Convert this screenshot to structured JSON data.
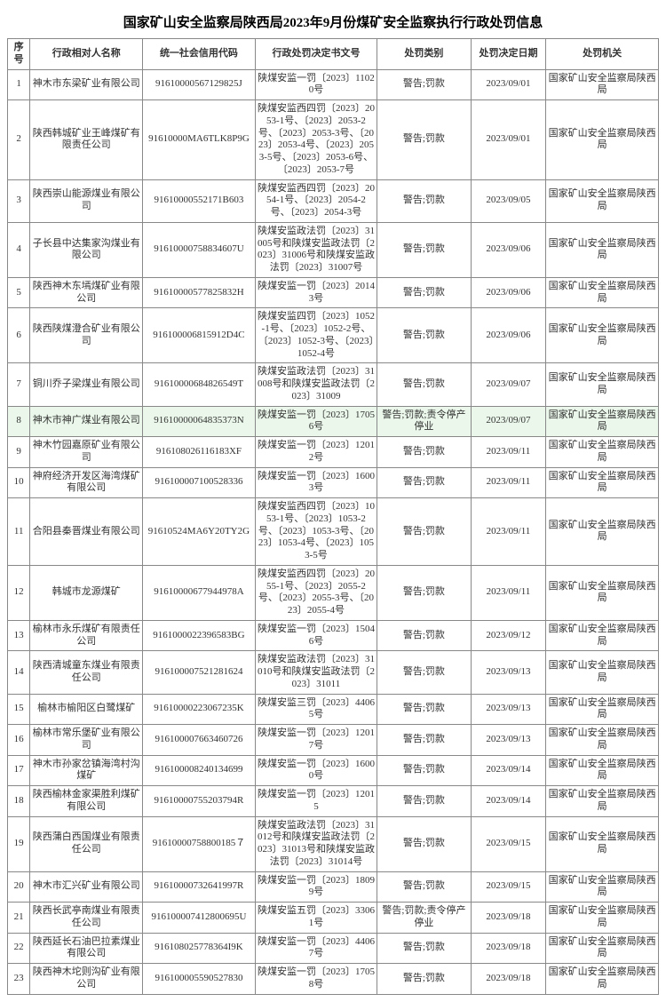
{
  "title": "国家矿山安全监察局陕西局2023年9月份煤矿安全监察执行行政处罚信息",
  "headers": {
    "idx": "序号",
    "name": "行政相对人名称",
    "code": "统一社会信用代码",
    "doc": "行政处罚决定书文号",
    "type": "处罚类别",
    "date": "处罚决定日期",
    "org": "处罚机关"
  },
  "org_name": "国家矿山安全监察局陕西局",
  "rows": [
    {
      "idx": 1,
      "name": "神木市东梁矿业有限公司",
      "code": "91610000567129825J",
      "doc": "陕煤安监一罚〔2023〕11020号",
      "type": "警告;罚款",
      "date": "2023/09/01"
    },
    {
      "idx": 2,
      "name": "陕西韩城矿业王峰煤矿有限责任公司",
      "code": "91610000MA6TLK8P9G",
      "doc": "陕煤安监西四罚〔2023〕2053-1号、〔2023〕2053-2号、〔2023〕2053-3号、〔2023〕2053-4号、〔2023〕2053-5号、〔2023〕2053-6号、〔2023〕2053-7号",
      "type": "警告;罚款",
      "date": "2023/09/01"
    },
    {
      "idx": 3,
      "name": "陕西崇山能源煤业有限公司",
      "code": "91610000552171B603",
      "doc": "陕煤安监西四罚〔2023〕2054-1号、〔2023〕2054-2号、〔2023〕2054-3号",
      "type": "警告;罚款",
      "date": "2023/09/05"
    },
    {
      "idx": 4,
      "name": "子长县中达集家沟煤业有限公司",
      "code": "91610000758834607U",
      "doc": "陕煤安监政法罚〔2023〕31005号和陕煤安监政法罚〔2023〕31006号和陕煤安监政法罚〔2023〕31007号",
      "type": "警告;罚款",
      "date": "2023/09/06"
    },
    {
      "idx": 5,
      "name": "陕西神木东墕煤矿业有限公司",
      "code": "91610000577825832H",
      "doc": "陕煤安监一罚〔2023〕20143号",
      "type": "警告;罚款",
      "date": "2023/09/06"
    },
    {
      "idx": 6,
      "name": "陕西陕煤澄合矿业有限公司",
      "code": "916100006815912D4C",
      "doc": "陕煤安监四罚〔2023〕1052-1号、〔2023〕1052-2号、〔2023〕1052-3号、〔2023〕1052-4号",
      "type": "警告;罚款",
      "date": "2023/09/06"
    },
    {
      "idx": 7,
      "name": "铜川乔子梁煤业有限公司",
      "code": "91610000684826549T",
      "doc": "陕煤安监政法罚〔2023〕31008号和陕煤安监政法罚〔2023〕31009",
      "type": "警告;罚款",
      "date": "2023/09/07"
    },
    {
      "idx": 8,
      "name": "神木市神广煤业有限公司",
      "code": "91610000064835373N",
      "doc": "陕煤安监一罚〔2023〕17056号",
      "type": "警告;罚款;责令停产停业",
      "date": "2023/09/07",
      "hl": true
    },
    {
      "idx": 9,
      "name": "神木竹园嘉原矿业有限公司",
      "code": "916108026116183XF",
      "doc": "陕煤安监一罚〔2023〕12012号",
      "type": "警告;罚款",
      "date": "2023/09/11"
    },
    {
      "idx": 10,
      "name": "神府经济开发区海湾煤矿有限公司",
      "code": "916100007100528336",
      "doc": "陕煤安监一罚〔2023〕16003号",
      "type": "警告;罚款",
      "date": "2023/09/11"
    },
    {
      "idx": 11,
      "name": "合阳县秦晋煤业有限公司",
      "code": "91610524MA6Y20TY2G",
      "doc": "陕煤安监西四罚〔2023〕1053-1号、〔2023〕1053-2号、〔2023〕1053-3号、〔2023〕1053-4号、〔2023〕1053-5号",
      "type": "警告;罚款",
      "date": "2023/09/11"
    },
    {
      "idx": 12,
      "name": "韩城市龙源煤矿",
      "code": "91610000677944978A",
      "doc": "陕煤安监西四罚〔2023〕2055-1号、〔2023〕2055-2号、〔2023〕2055-3号、〔2023〕2055-4号",
      "type": "警告;罚款",
      "date": "2023/09/11"
    },
    {
      "idx": 13,
      "name": "榆林市永乐煤矿有限责任公司",
      "code": "9161000022396583BG",
      "doc": "陕煤安监一罚〔2023〕15046号",
      "type": "警告;罚款",
      "date": "2023/09/12"
    },
    {
      "idx": 14,
      "name": "陕西清城童东煤业有限责任公司",
      "code": "916100007521281624",
      "doc": "陕煤安监政法罚〔2023〕31010号和陕煤安监政法罚〔2023〕31011",
      "type": "警告;罚款",
      "date": "2023/09/13"
    },
    {
      "idx": 15,
      "name": "榆林市榆阳区白鹭煤矿",
      "code": "91610000223067235K",
      "doc": "陕煤安监三罚〔2023〕44065号",
      "type": "警告;罚款",
      "date": "2023/09/13"
    },
    {
      "idx": 16,
      "name": "榆林市常乐堡矿业有限公司",
      "code": "916100007663460726",
      "doc": "陕煤安监一罚〔2023〕12017号",
      "type": "警告;罚款",
      "date": "2023/09/13"
    },
    {
      "idx": 17,
      "name": "神木市孙家岔镇海湾村沟煤矿",
      "code": "916100008240134699",
      "doc": "陕煤安监一罚〔2023〕16000号",
      "type": "警告;罚款",
      "date": "2023/09/14"
    },
    {
      "idx": 18,
      "name": "陕西榆林金家渠胜利煤矿有限公司",
      "code": "91610000755203794R",
      "doc": "陕煤安监一罚〔2023〕12015",
      "type": "警告;罚款",
      "date": "2023/09/14"
    },
    {
      "idx": 19,
      "name": "陕西蒲白西国煤业有限责任公司",
      "code": "91610000758800185７",
      "doc": "陕煤安监政法罚〔2023〕31012号和陕煤安监政法罚〔2023〕31013号和陕煤安监政法罚〔2023〕31014号",
      "type": "警告;罚款",
      "date": "2023/09/15"
    },
    {
      "idx": 20,
      "name": "神木市汇兴矿业有限公司",
      "code": "91610000732641997R",
      "doc": "陕煤安监一罚〔2023〕18099号",
      "type": "警告;罚款",
      "date": "2023/09/15"
    },
    {
      "idx": 21,
      "name": "陕西长武亭南煤业有限责任公司",
      "code": "916100007412800695U",
      "doc": "陕煤安监五罚〔2023〕33061号",
      "type": "警告;罚款;责令停产停业",
      "date": "2023/09/18"
    },
    {
      "idx": 22,
      "name": "陕西延长石油巴拉素煤业有限公司",
      "code": "916108025778364I9K",
      "doc": "陕煤安监一罚〔2023〕44067号",
      "type": "警告;罚款",
      "date": "2023/09/18"
    },
    {
      "idx": 23,
      "name": "陕西神木坨则沟矿业有限公司",
      "code": "916100005590527830",
      "doc": "陕煤安监一罚〔2023〕17058号",
      "type": "警告;罚款",
      "date": "2023/09/18"
    }
  ]
}
